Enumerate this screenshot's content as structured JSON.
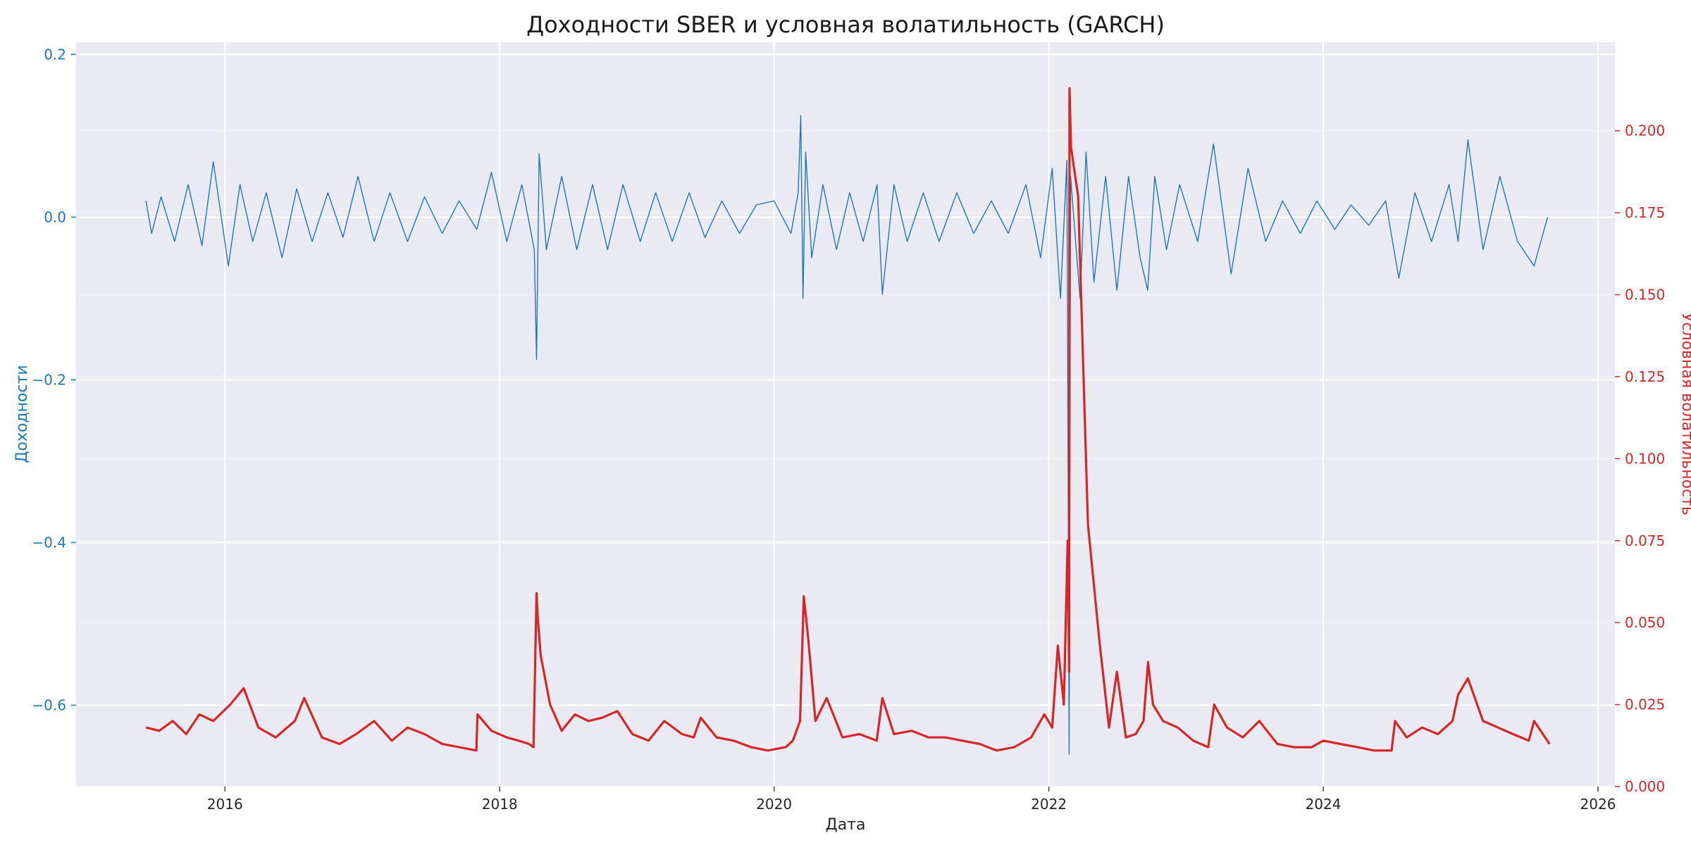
{
  "chart_data": {
    "type": "line",
    "title": "Доходности SBER и условная волатильность (GARCH)",
    "xlabel": "Дата",
    "ylabel_left": "Доходности",
    "ylabel_right": "Условная волатильность",
    "x_range": [
      "2014-12-01",
      "2026-02-15"
    ],
    "x_ticks": [
      "2016",
      "2018",
      "2020",
      "2022",
      "2024",
      "2026"
    ],
    "y_left_range": [
      -0.7,
      0.215
    ],
    "y_left_ticks": [
      "0.2",
      "0.0",
      "−0.2",
      "−0.4",
      "−0.6"
    ],
    "y_right_range": [
      0.0,
      0.227
    ],
    "y_right_ticks": [
      "0.000",
      "0.025",
      "0.050",
      "0.075",
      "0.100",
      "0.125",
      "0.150",
      "0.175",
      "0.200"
    ],
    "grid": true,
    "colors": {
      "returns": "#1f77b4",
      "volatility": "#d62728",
      "background": "#eaeaf2",
      "grid": "#ffffff"
    },
    "series": [
      {
        "axis": "left",
        "x": [
          "2015-06-05",
          "2015-06-20",
          "2015-07-15",
          "2015-08-20",
          "2015-09-25",
          "2015-11-01",
          "2015-12-01",
          "2016-01-10",
          "2016-02-10",
          "2016-03-15",
          "2016-04-20",
          "2016-06-01",
          "2016-07-10",
          "2016-08-20",
          "2016-10-01",
          "2016-11-10",
          "2016-12-20",
          "2017-02-01",
          "2017-03-15",
          "2017-05-01",
          "2017-06-15",
          "2017-08-01",
          "2017-09-15",
          "2017-11-01",
          "2017-12-10",
          "2018-01-20",
          "2018-03-01",
          "2018-04-03",
          "2018-04-09",
          "2018-04-16",
          "2018-05-05",
          "2018-06-15",
          "2018-07-25",
          "2018-09-05",
          "2018-10-15",
          "2018-11-25",
          "2019-01-10",
          "2019-02-20",
          "2019-04-05",
          "2019-05-20",
          "2019-07-01",
          "2019-08-15",
          "2019-10-01",
          "2019-11-15",
          "2020-01-01",
          "2020-02-15",
          "2020-03-05",
          "2020-03-12",
          "2020-03-18",
          "2020-03-25",
          "2020-04-10",
          "2020-05-10",
          "2020-06-15",
          "2020-07-20",
          "2020-08-25",
          "2020-10-01",
          "2020-10-15",
          "2020-11-15",
          "2020-12-20",
          "2021-02-01",
          "2021-03-15",
          "2021-05-01",
          "2021-06-15",
          "2021-08-01",
          "2021-09-15",
          "2021-11-01",
          "2021-12-10",
          "2022-01-10",
          "2022-02-01",
          "2022-02-18",
          "2022-02-24",
          "2022-02-28",
          "2022-03-25",
          "2022-04-10",
          "2022-05-01",
          "2022-06-01",
          "2022-07-01",
          "2022-08-01",
          "2022-09-01",
          "2022-09-21",
          "2022-10-10",
          "2022-11-10",
          "2022-12-15",
          "2023-02-01",
          "2023-03-15",
          "2023-05-01",
          "2023-06-15",
          "2023-08-01",
          "2023-09-15",
          "2023-11-01",
          "2023-12-15",
          "2024-02-01",
          "2024-03-15",
          "2024-05-01",
          "2024-06-15",
          "2024-07-20",
          "2024-09-01",
          "2024-10-15",
          "2024-12-01",
          "2024-12-25",
          "2025-01-20",
          "2025-03-01",
          "2025-04-15",
          "2025-06-01",
          "2025-07-15",
          "2025-08-20"
        ],
        "y": [
          0.02,
          -0.02,
          0.025,
          -0.03,
          0.04,
          -0.035,
          0.068,
          -0.06,
          0.04,
          -0.03,
          0.03,
          -0.05,
          0.035,
          -0.03,
          0.03,
          -0.025,
          0.05,
          -0.03,
          0.03,
          -0.03,
          0.025,
          -0.02,
          0.02,
          -0.015,
          0.055,
          -0.03,
          0.04,
          -0.04,
          -0.175,
          0.078,
          -0.04,
          0.05,
          -0.04,
          0.04,
          -0.04,
          0.04,
          -0.03,
          0.03,
          -0.03,
          0.03,
          -0.025,
          0.02,
          -0.02,
          0.015,
          0.02,
          -0.02,
          0.03,
          0.125,
          -0.1,
          0.08,
          -0.05,
          0.04,
          -0.04,
          0.03,
          -0.03,
          0.04,
          -0.095,
          0.04,
          -0.03,
          0.03,
          -0.03,
          0.03,
          -0.02,
          0.02,
          -0.02,
          0.04,
          -0.05,
          0.06,
          -0.1,
          0.07,
          -0.66,
          0.05,
          -0.1,
          0.08,
          -0.08,
          0.05,
          -0.09,
          0.05,
          -0.05,
          -0.09,
          0.05,
          -0.04,
          0.04,
          -0.03,
          0.09,
          -0.07,
          0.06,
          -0.03,
          0.02,
          -0.02,
          0.02,
          -0.015,
          0.015,
          -0.01,
          0.02,
          -0.075,
          0.03,
          -0.03,
          0.04,
          -0.03,
          0.095,
          -0.04,
          0.05,
          -0.03,
          -0.06,
          0.0
        ]
      },
      {
        "axis": "right",
        "x": [
          "2015-06-05",
          "2015-07-10",
          "2015-08-15",
          "2015-09-20",
          "2015-10-25",
          "2015-12-01",
          "2016-01-15",
          "2016-02-20",
          "2016-03-30",
          "2016-05-15",
          "2016-07-05",
          "2016-07-30",
          "2016-09-15",
          "2016-11-01",
          "2016-12-15",
          "2017-02-01",
          "2017-03-20",
          "2017-05-01",
          "2017-06-15",
          "2017-08-01",
          "2017-09-15",
          "2017-10-31",
          "2017-11-03",
          "2017-12-10",
          "2018-01-20",
          "2018-02-20",
          "2018-03-20",
          "2018-04-01",
          "2018-04-09",
          "2018-04-12",
          "2018-04-20",
          "2018-05-15",
          "2018-06-15",
          "2018-07-20",
          "2018-08-25",
          "2018-10-01",
          "2018-11-10",
          "2018-12-20",
          "2019-02-01",
          "2019-03-15",
          "2019-05-01",
          "2019-06-01",
          "2019-06-20",
          "2019-08-01",
          "2019-09-15",
          "2019-11-01",
          "2019-12-15",
          "2020-02-01",
          "2020-02-20",
          "2020-03-10",
          "2020-03-20",
          "2020-04-01",
          "2020-04-20",
          "2020-05-20",
          "2020-07-01",
          "2020-08-15",
          "2020-09-30",
          "2020-10-15",
          "2020-11-15",
          "2021-01-01",
          "2021-02-15",
          "2021-04-01",
          "2021-05-15",
          "2021-07-01",
          "2021-08-15",
          "2021-10-01",
          "2021-11-15",
          "2021-12-20",
          "2022-01-10",
          "2022-01-25",
          "2022-02-10",
          "2022-02-20",
          "2022-02-24",
          "2022-02-25",
          "2022-03-01",
          "2022-03-20",
          "2022-04-15",
          "2022-05-15",
          "2022-06-10",
          "2022-07-01",
          "2022-07-25",
          "2022-08-20",
          "2022-09-10",
          "2022-09-22",
          "2022-10-05",
          "2022-11-01",
          "2022-12-10",
          "2023-01-20",
          "2023-03-01",
          "2023-03-17",
          "2023-04-20",
          "2023-06-01",
          "2023-07-15",
          "2023-09-01",
          "2023-10-15",
          "2023-12-01",
          "2024-01-01",
          "2024-02-15",
          "2024-04-01",
          "2024-05-15",
          "2024-07-01",
          "2024-07-10",
          "2024-08-10",
          "2024-09-20",
          "2024-11-01",
          "2024-12-10",
          "2024-12-25",
          "2025-01-20",
          "2025-03-01",
          "2025-04-10",
          "2025-05-20",
          "2025-07-01",
          "2025-07-15",
          "2025-08-25"
        ],
        "y": [
          0.018,
          0.017,
          0.02,
          0.016,
          0.022,
          0.02,
          0.025,
          0.03,
          0.018,
          0.015,
          0.02,
          0.027,
          0.015,
          0.013,
          0.016,
          0.02,
          0.014,
          0.018,
          0.016,
          0.013,
          0.012,
          0.011,
          0.022,
          0.017,
          0.015,
          0.014,
          0.013,
          0.012,
          0.059,
          0.052,
          0.04,
          0.025,
          0.017,
          0.022,
          0.02,
          0.021,
          0.023,
          0.016,
          0.014,
          0.02,
          0.016,
          0.015,
          0.021,
          0.015,
          0.014,
          0.012,
          0.011,
          0.012,
          0.014,
          0.02,
          0.058,
          0.045,
          0.02,
          0.027,
          0.015,
          0.016,
          0.014,
          0.027,
          0.016,
          0.017,
          0.015,
          0.015,
          0.014,
          0.013,
          0.011,
          0.012,
          0.015,
          0.022,
          0.018,
          0.043,
          0.025,
          0.075,
          0.035,
          0.213,
          0.195,
          0.18,
          0.08,
          0.045,
          0.018,
          0.035,
          0.015,
          0.016,
          0.02,
          0.038,
          0.025,
          0.02,
          0.018,
          0.014,
          0.012,
          0.025,
          0.018,
          0.015,
          0.02,
          0.013,
          0.012,
          0.012,
          0.014,
          0.013,
          0.012,
          0.011,
          0.011,
          0.02,
          0.015,
          0.018,
          0.016,
          0.02,
          0.028,
          0.033,
          0.02,
          0.018,
          0.016,
          0.014,
          0.02,
          0.013
        ]
      }
    ]
  }
}
